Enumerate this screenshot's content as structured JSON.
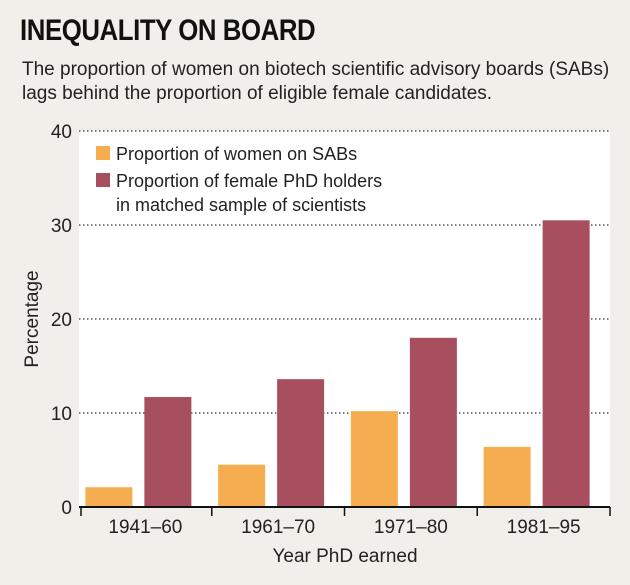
{
  "title": "INEQUALITY ON BOARD",
  "subtitle": "The proportion of women on biotech scientific advisory boards (SABs) lags behind the proportion of eligible female candidates.",
  "colors": {
    "background": "#f1efe9",
    "plot_background": "#ffffff",
    "women_on_sabs": "#f5ad50",
    "female_phd": "#a74f5e"
  },
  "chart_data": {
    "type": "bar",
    "categories": [
      "1941–60",
      "1961–70",
      "1971–80",
      "1981–95"
    ],
    "series": [
      {
        "name": "Proportion of women on SABs",
        "values": [
          2.1,
          4.5,
          10.2,
          6.4
        ]
      },
      {
        "name_lines": [
          "Proportion of female PhD holders",
          "in matched sample of scientists"
        ],
        "values": [
          11.7,
          13.6,
          18.0,
          30.5
        ]
      }
    ],
    "xlabel": "Year PhD earned",
    "ylabel": "Percentage",
    "ylim": [
      0,
      40
    ],
    "yticks": [
      "0",
      "10",
      "20",
      "30",
      "40"
    ],
    "grid": "dotted horizontal",
    "legend": "top-left"
  }
}
